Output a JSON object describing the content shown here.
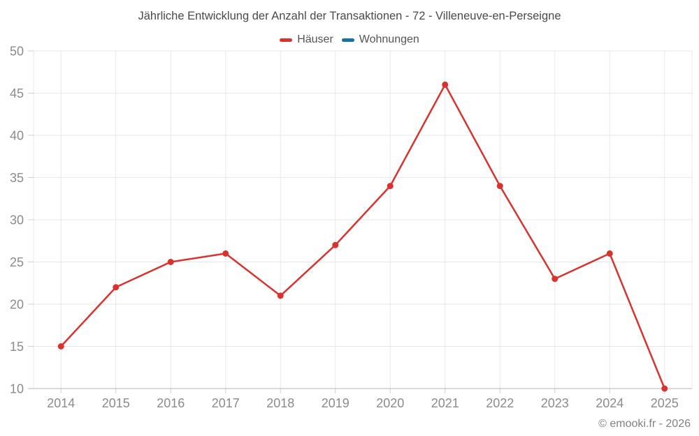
{
  "title": "Jährliche Entwicklung der Anzahl der Transaktionen - 72 - Villeneuve-en-Perseigne",
  "legend": {
    "items": [
      {
        "label": "Häuser",
        "color": "#da322f"
      },
      {
        "label": "Wohnungen",
        "color": "#1a6fa5"
      }
    ]
  },
  "footer": "© emooki.fr - 2026",
  "colors": {
    "background": "#ffffff",
    "title_text": "#4a4a4a",
    "legend_text": "#555555",
    "footer_text": "#808080",
    "grid": "#e7e7e7",
    "axis": "#b5b5b5",
    "tick_mark": "#cfcfcf",
    "tick_label": "#8b8b8b",
    "series_hauser": "#da322f",
    "series_wohnungen": "#1a6fa5"
  },
  "chart_data": {
    "type": "line",
    "title": "Jährliche Entwicklung der Anzahl der Transaktionen - 72 - Villeneuve-en-Perseigne",
    "categories": [
      "2014",
      "2015",
      "2016",
      "2017",
      "2018",
      "2019",
      "2020",
      "2021",
      "2022",
      "2023",
      "2024",
      "2025"
    ],
    "series": [
      {
        "name": "Häuser",
        "color": "#da322f",
        "values": [
          15,
          22,
          25,
          26,
          21,
          27,
          34,
          46,
          34,
          23,
          26,
          10
        ]
      },
      {
        "name": "Wohnungen",
        "color": "#1a6fa5",
        "values": []
      }
    ],
    "xlabel": "",
    "ylabel": "",
    "ylim": [
      10,
      50
    ],
    "ytick_step": 5,
    "grid": true,
    "legend_position": "top",
    "point_radius": 4.5,
    "line_width": 2.5
  }
}
